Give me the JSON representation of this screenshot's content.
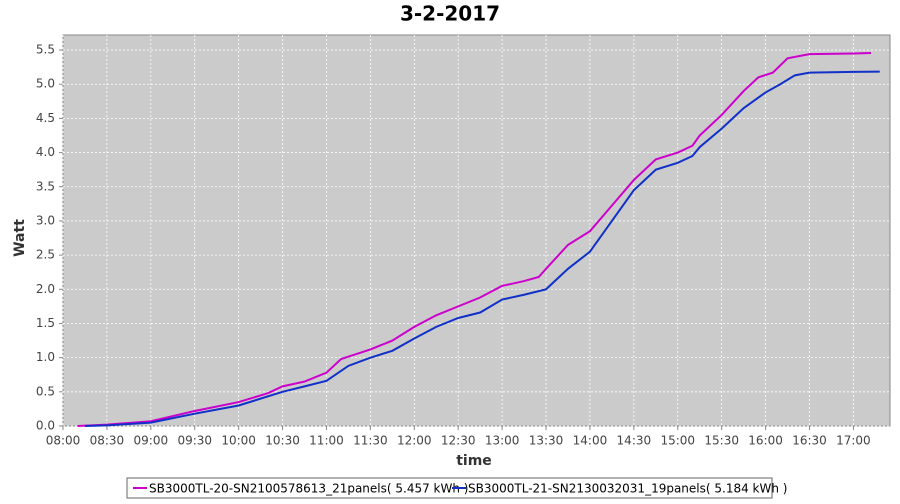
{
  "chart_data": {
    "type": "line",
    "title": "3-2-2017",
    "x_label": "time",
    "y_label": "Watt",
    "xlim": [
      "08:00",
      "17:25"
    ],
    "ylim": [
      0,
      5.72
    ],
    "grid": true,
    "legend": "bottom",
    "xticks": [
      "08:00",
      "08:30",
      "09:00",
      "09:30",
      "10:00",
      "10:30",
      "11:00",
      "11:30",
      "12:00",
      "12:30",
      "13:00",
      "13:30",
      "14:00",
      "14:30",
      "15:00",
      "15:30",
      "16:00",
      "16:30",
      "17:00"
    ],
    "yticks": [
      {
        "value": 0,
        "label": "0.0"
      },
      {
        "value": 0.5,
        "label": "0.5"
      },
      {
        "value": 1,
        "label": "1.0"
      },
      {
        "value": 1.5,
        "label": "1.5"
      },
      {
        "value": 2,
        "label": "2.0"
      },
      {
        "value": 2.5,
        "label": "2.5"
      },
      {
        "value": 3,
        "label": "3.0"
      },
      {
        "value": 3.5,
        "label": "3.5"
      },
      {
        "value": 4,
        "label": "4.0"
      },
      {
        "value": 4.5,
        "label": "4.5"
      },
      {
        "value": 5,
        "label": "5.0"
      },
      {
        "value": 5.5,
        "label": "5.5"
      }
    ],
    "series": [
      {
        "name": "SB3000TL-20-SN2100578613_21panels( 5.457 kWh )",
        "color": "#cc00cc",
        "x": [
          "08:10",
          "08:30",
          "09:00",
          "09:30",
          "10:00",
          "10:20",
          "10:30",
          "10:45",
          "11:00",
          "11:10",
          "11:30",
          "11:45",
          "12:00",
          "12:15",
          "12:30",
          "12:45",
          "13:00",
          "13:15",
          "13:25",
          "13:30",
          "13:45",
          "14:00",
          "14:10",
          "14:30",
          "14:45",
          "15:00",
          "15:10",
          "15:15",
          "15:30",
          "15:45",
          "15:55",
          "16:05",
          "16:15",
          "16:30",
          "17:00",
          "17:12"
        ],
        "values": [
          0,
          0.02,
          0.07,
          0.22,
          0.35,
          0.48,
          0.58,
          0.65,
          0.78,
          0.98,
          1.12,
          1.25,
          1.45,
          1.62,
          1.75,
          1.88,
          2.05,
          2.12,
          2.18,
          2.3,
          2.65,
          2.85,
          3.1,
          3.6,
          3.9,
          4.0,
          4.1,
          4.25,
          4.55,
          4.9,
          5.1,
          5.17,
          5.38,
          5.44,
          5.45,
          5.457
        ]
      },
      {
        "name": "SB3000TL-21-SN2130032031_19panels( 5.184 kWh )",
        "color": "#1030c8",
        "x": [
          "08:15",
          "08:30",
          "09:00",
          "09:30",
          "10:00",
          "10:30",
          "10:45",
          "11:00",
          "11:15",
          "11:30",
          "11:45",
          "12:00",
          "12:15",
          "12:30",
          "12:45",
          "13:00",
          "13:15",
          "13:30",
          "13:45",
          "14:00",
          "14:15",
          "14:30",
          "14:45",
          "15:00",
          "15:10",
          "15:15",
          "15:30",
          "15:45",
          "16:00",
          "16:10",
          "16:20",
          "16:30",
          "17:00",
          "17:18"
        ],
        "values": [
          0,
          0.01,
          0.05,
          0.18,
          0.3,
          0.5,
          0.58,
          0.66,
          0.88,
          1.0,
          1.1,
          1.28,
          1.45,
          1.58,
          1.66,
          1.85,
          1.92,
          2.0,
          2.3,
          2.55,
          3.0,
          3.45,
          3.75,
          3.85,
          3.95,
          4.08,
          4.35,
          4.65,
          4.88,
          5.0,
          5.13,
          5.17,
          5.18,
          5.184
        ]
      }
    ]
  }
}
